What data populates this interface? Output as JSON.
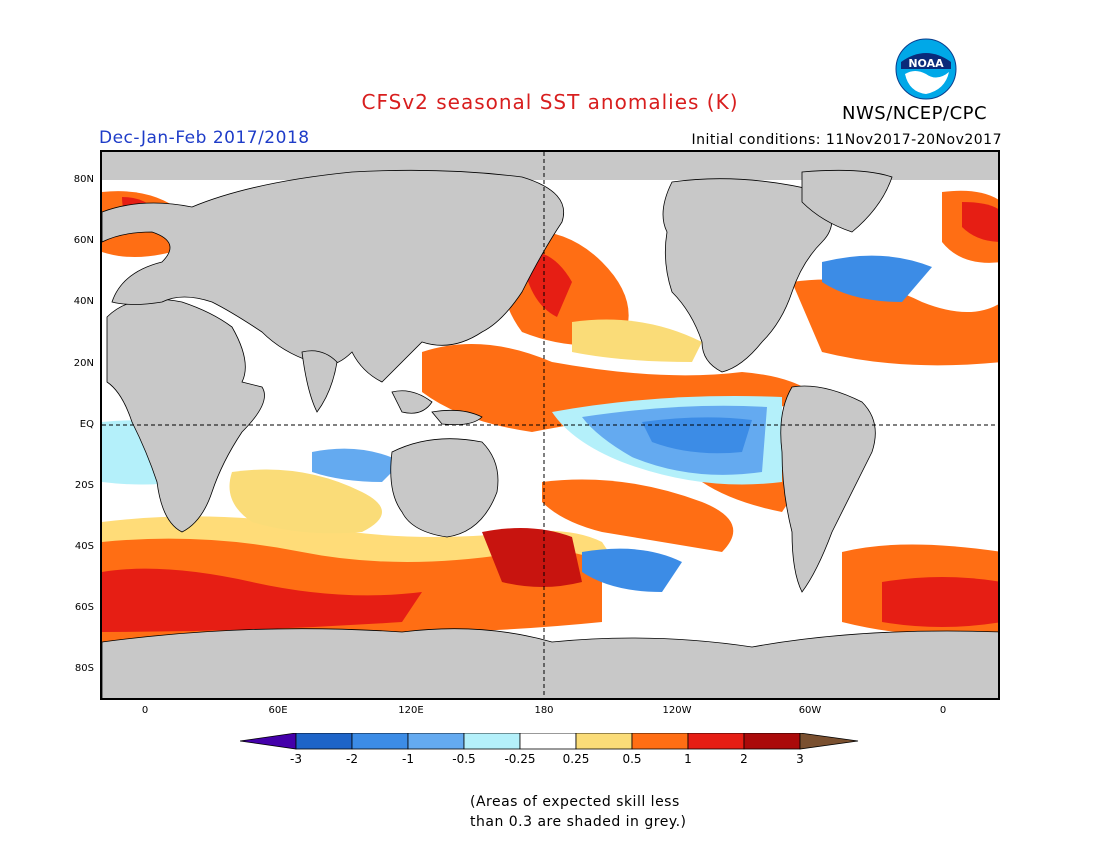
{
  "header": {
    "title": "CFSv2 seasonal SST anomalies (K)",
    "season": "Dec-Jan-Feb 2017/2018",
    "initial_conditions": "Initial conditions: 11Nov2017-20Nov2017",
    "organization": "NWS/NCEP/CPC",
    "logo_text": "NOAA"
  },
  "colors": {
    "title": "#d81e1e",
    "season": "#1e3cc8",
    "land": "#c8c8c8",
    "ocean_neutral": "#ffffff"
  },
  "map": {
    "lat_labels": [
      "80N",
      "60N",
      "40N",
      "20N",
      "EQ",
      "20S",
      "40S",
      "60S",
      "80S"
    ],
    "lon_labels": [
      "0",
      "60E",
      "120E",
      "180",
      "120W",
      "60W",
      "0"
    ]
  },
  "colorbar": {
    "tick_labels": [
      "-3",
      "-2",
      "-1",
      "-0.5",
      "-0.25",
      "0.25",
      "0.5",
      "1",
      "2",
      "3"
    ],
    "colors": [
      "#4400aa",
      "#1e64c8",
      "#3c8ce6",
      "#64aaf0",
      "#b4f0fa",
      "#ffffff",
      "#fadc78",
      "#ff6e14",
      "#e61e14",
      "#aa0a0a",
      "#7a5030"
    ]
  },
  "footnote": "(Areas of expected skill less\nthan 0.3 are shaded in grey.)"
}
